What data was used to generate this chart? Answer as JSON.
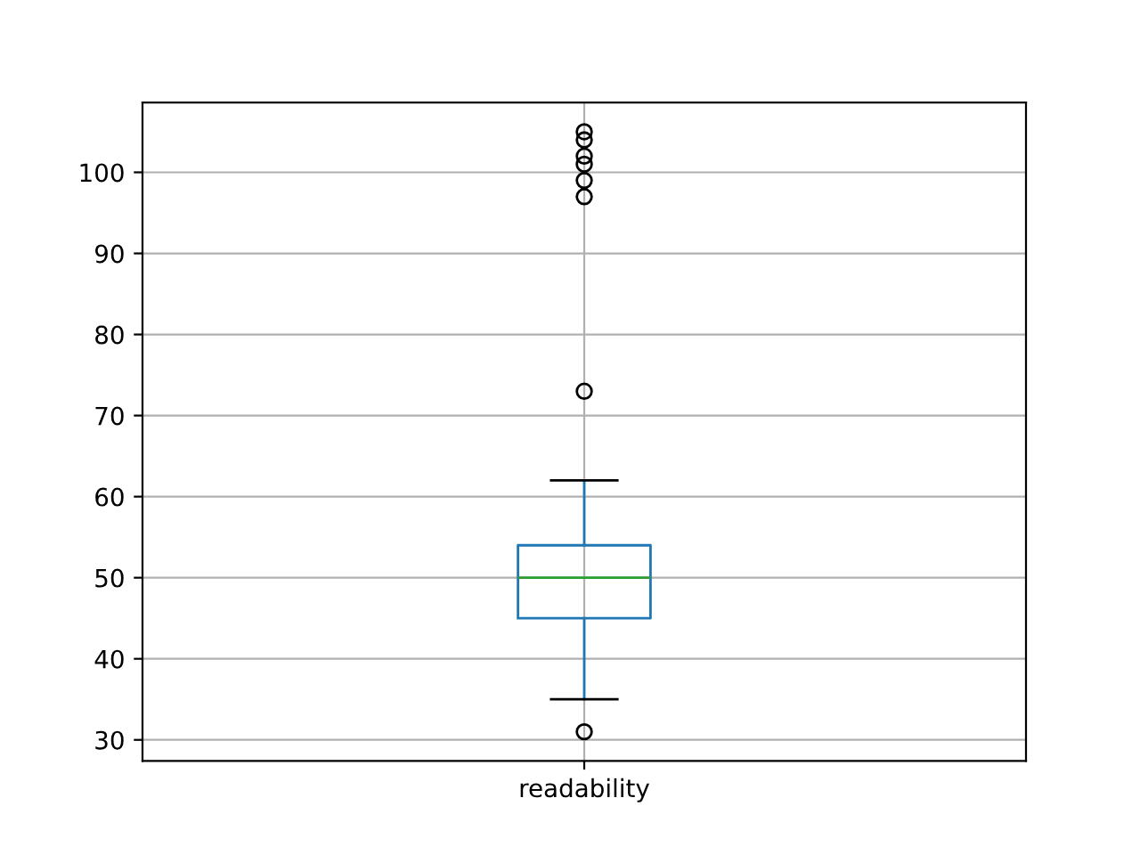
{
  "chart_data": {
    "type": "box",
    "categories": [
      "readability"
    ],
    "series": [
      {
        "color": "#1f77b4",
        "boxes": [
          {
            "low": 35,
            "q1": 45,
            "median": 50,
            "q3": 54,
            "high": 62,
            "outliers": [
              31,
              73,
              97,
              99,
              101,
              102,
              104,
              105
            ]
          }
        ]
      }
    ],
    "ylim": [
      27.4,
      108.6
    ],
    "yticks": [
      30,
      40,
      50,
      60,
      70,
      80,
      90,
      100
    ],
    "grid": true,
    "marker": "circle"
  }
}
